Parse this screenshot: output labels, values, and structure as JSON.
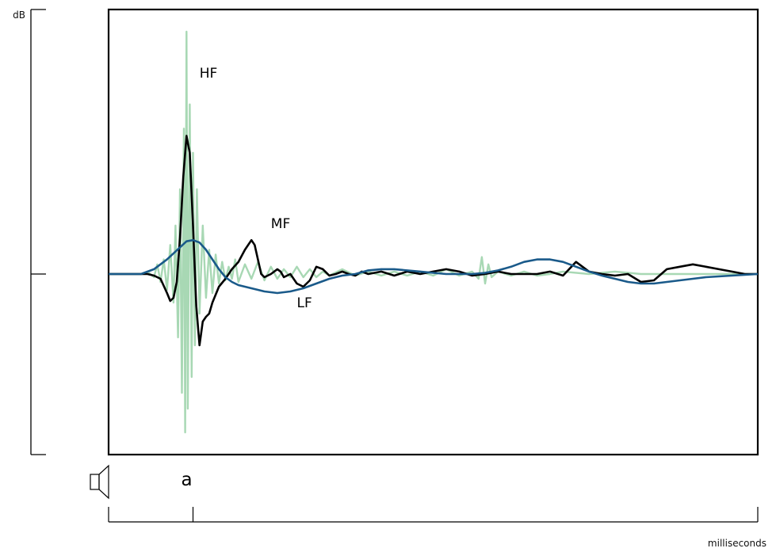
{
  "chart_data": {
    "type": "line",
    "title": "",
    "ylabel": "dB",
    "xlabel": "milliseconds",
    "grid": false,
    "legend": "inline",
    "xlim": [
      0,
      100
    ],
    "ylim": [
      -100,
      100
    ],
    "marker": {
      "label": "a",
      "x": 13
    },
    "series": [
      {
        "name": "HF",
        "color": "#a8d8b4",
        "label_at": {
          "x": 14,
          "y": 81
        },
        "x": [
          0,
          5,
          6,
          7,
          7.5,
          8,
          8.5,
          9,
          9.5,
          10,
          10.3,
          10.7,
          11,
          11.3,
          11.6,
          11.8,
          12,
          12.2,
          12.5,
          12.8,
          13,
          13.3,
          13.6,
          14,
          14.5,
          15,
          15.5,
          16,
          16.5,
          17,
          17.5,
          18,
          18.5,
          19,
          19.5,
          20,
          21,
          22,
          23,
          24,
          25,
          26,
          27,
          28,
          29,
          30,
          31,
          32,
          33,
          34,
          36,
          38,
          40,
          42,
          44,
          46,
          48,
          50,
          52,
          54,
          56,
          57,
          57.5,
          58,
          58.5,
          59,
          60,
          62,
          64,
          66,
          68,
          70,
          74,
          78,
          82,
          86,
          90,
          94,
          100
        ],
        "y": [
          0,
          0,
          1,
          -2,
          4,
          -5,
          6,
          -10,
          12,
          -18,
          20,
          -40,
          35,
          -75,
          60,
          -100,
          100,
          -85,
          70,
          -65,
          50,
          -45,
          35,
          -25,
          20,
          -15,
          10,
          -12,
          8,
          -6,
          5,
          -4,
          3,
          -3,
          6,
          -5,
          4,
          -3,
          5,
          -4,
          3,
          -3,
          2,
          -2,
          3,
          -2,
          2,
          -2,
          1,
          -1,
          2,
          -1,
          1,
          -1,
          1,
          -1,
          1,
          -1,
          2,
          -1,
          1,
          -3,
          7,
          -6,
          4,
          -2,
          1,
          -1,
          1,
          -1,
          0,
          1,
          0,
          1,
          0,
          0,
          0,
          0,
          0
        ]
      },
      {
        "name": "MF",
        "color": "#000000",
        "label_at": {
          "x": 25,
          "y": 19
        },
        "x": [
          0,
          6,
          7,
          8,
          9,
          9.5,
          10,
          10.5,
          11,
          11.5,
          12,
          12.5,
          13,
          13.5,
          14,
          14.5,
          15,
          15.5,
          16,
          17,
          18,
          19,
          20,
          21,
          22,
          22.5,
          23,
          23.5,
          24,
          25,
          26,
          26.5,
          27,
          28,
          29,
          30,
          31,
          32,
          33,
          34,
          35,
          36,
          37,
          38,
          39,
          40,
          42,
          44,
          46,
          48,
          50,
          52,
          54,
          56,
          58,
          60,
          62,
          64,
          66,
          68,
          70,
          72,
          74,
          76,
          78,
          80,
          82,
          84,
          86,
          88,
          90,
          92,
          94,
          96,
          98,
          100
        ],
        "y": [
          0,
          0,
          -1,
          -3,
          -12,
          -17,
          -15,
          -5,
          15,
          40,
          57,
          50,
          20,
          -20,
          -45,
          -30,
          -27,
          -25,
          -18,
          -8,
          -3,
          2,
          5,
          10,
          14,
          12,
          6,
          0,
          -2,
          0,
          2,
          1,
          -2,
          0,
          -6,
          -8,
          -4,
          3,
          2,
          -1,
          0,
          1,
          0,
          -1,
          1,
          0,
          1,
          -1,
          1,
          0,
          1,
          2,
          1,
          -1,
          0,
          1,
          0,
          0,
          0,
          1,
          -1,
          5,
          1,
          0,
          -1,
          0,
          -5,
          -4,
          2,
          3,
          4,
          3,
          2,
          1,
          0,
          0
        ]
      },
      {
        "name": "LF",
        "color": "#1a5a8a",
        "label_at": {
          "x": 29,
          "y": -21
        },
        "x": [
          0,
          5,
          7,
          9,
          11,
          12,
          13,
          14,
          15,
          16,
          17,
          18,
          19,
          20,
          22,
          24,
          26,
          28,
          30,
          32,
          34,
          36,
          38,
          40,
          42,
          44,
          46,
          48,
          50,
          52,
          54,
          56,
          58,
          60,
          62,
          64,
          66,
          68,
          70,
          72,
          74,
          76,
          78,
          80,
          82,
          84,
          86,
          88,
          90,
          92,
          94,
          96,
          98,
          100
        ],
        "y": [
          0,
          0,
          2,
          6,
          11,
          13.5,
          14,
          13,
          10,
          6,
          2,
          -2,
          -5,
          -7,
          -9,
          -11,
          -12,
          -11,
          -9,
          -6,
          -3,
          -1,
          0,
          1.5,
          2,
          2,
          1.5,
          1,
          0.5,
          0,
          0,
          0,
          0.5,
          1.5,
          3,
          5,
          6,
          6,
          5,
          3,
          1,
          -1,
          -3,
          -5,
          -6,
          -6,
          -5,
          -4,
          -3,
          -2,
          -1.5,
          -1,
          -0.5,
          0
        ]
      }
    ]
  }
}
